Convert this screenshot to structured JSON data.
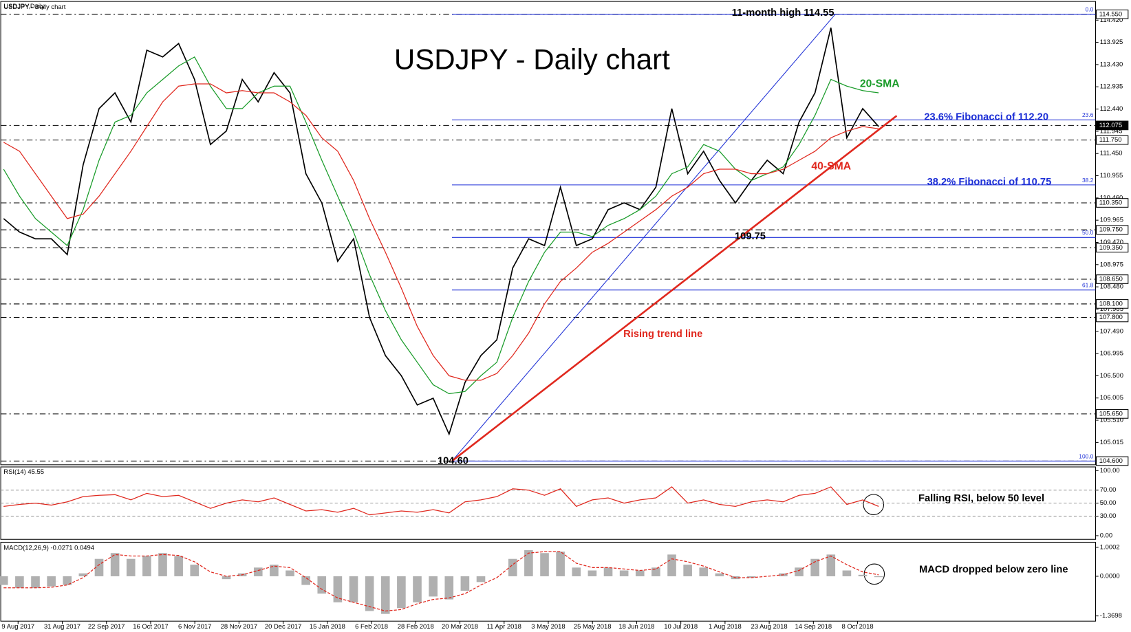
{
  "header": "USDJPY,Daily",
  "x_axis_labels": [
    "9 Aug 2017",
    "31 Aug 2017",
    "22 Sep 2017",
    "16 Oct 2017",
    "6 Nov 2017",
    "28 Nov 2017",
    "20 Dec 2017",
    "15 Jan 2018",
    "6 Feb 2018",
    "28 Feb 2018",
    "20 Mar 2018",
    "11 Apr 2018",
    "3 May 2018",
    "25 May 2018",
    "18 Jun 2018",
    "10 Jul 2018",
    "1 Aug 2018",
    "23 Aug 2018",
    "14 Sep 2018",
    "8 Oct 2018"
  ],
  "chart_data": [
    {
      "type": "line",
      "title": "USDJPY - Daily chart",
      "series": [
        {
          "color": "#000000",
          "values": [
            110.0,
            109.7,
            109.55,
            109.55,
            109.2,
            111.2,
            112.45,
            112.8,
            112.15,
            113.75,
            113.6,
            113.9,
            113.1,
            111.65,
            111.95,
            113.1,
            112.6,
            113.25,
            112.8,
            111.0,
            110.35,
            109.05,
            109.55,
            107.8,
            106.95,
            106.5,
            105.85,
            106.0,
            105.2,
            106.35,
            106.95,
            107.3,
            108.9,
            109.55,
            109.4,
            110.7,
            109.4,
            109.55,
            110.2,
            110.35,
            110.2,
            110.7,
            112.45,
            111.0,
            111.5,
            110.85,
            110.35,
            110.85,
            111.3,
            111.0,
            112.15,
            112.8,
            114.25,
            111.8,
            112.45,
            112.05
          ]
        },
        {
          "name": "20-SMA",
          "color": "#1a9c2a",
          "values": [
            111.1,
            110.5,
            110.0,
            109.7,
            109.4,
            110.2,
            111.3,
            112.15,
            112.3,
            112.8,
            113.1,
            113.4,
            113.6,
            112.95,
            112.45,
            112.45,
            112.8,
            112.95,
            112.95,
            112.15,
            111.3,
            110.5,
            109.7,
            108.75,
            107.95,
            107.3,
            106.8,
            106.3,
            106.1,
            106.15,
            106.5,
            106.8,
            107.8,
            108.6,
            109.25,
            109.7,
            109.7,
            109.6,
            109.85,
            110.0,
            110.2,
            110.5,
            111.0,
            111.15,
            111.65,
            111.5,
            111.1,
            110.85,
            111.0,
            111.15,
            111.65,
            112.3,
            113.1,
            112.95,
            112.85,
            112.8
          ]
        },
        {
          "name": "40-SMA",
          "color": "#e0281e",
          "values": [
            111.7,
            111.5,
            111.0,
            110.5,
            110.0,
            110.1,
            110.5,
            111.0,
            111.5,
            112.05,
            112.6,
            112.95,
            113.0,
            113.0,
            112.8,
            112.85,
            112.8,
            112.8,
            112.6,
            112.3,
            111.8,
            111.5,
            110.85,
            110.0,
            109.25,
            108.45,
            107.6,
            106.95,
            106.5,
            106.4,
            106.4,
            106.55,
            106.95,
            107.45,
            108.1,
            108.6,
            108.9,
            109.25,
            109.45,
            109.7,
            109.95,
            110.2,
            110.5,
            110.7,
            111.0,
            111.1,
            111.1,
            111.0,
            111.0,
            111.1,
            111.3,
            111.5,
            111.8,
            111.95,
            112.05,
            112.0
          ]
        }
      ],
      "ylim": [
        104.55,
        114.82
      ],
      "yticks": [
        {
          "value": 114.42,
          "label": "114.420"
        },
        {
          "value": 113.925,
          "label": "113.925"
        },
        {
          "value": 113.43,
          "label": "113.430"
        },
        {
          "value": 112.935,
          "label": "112.935"
        },
        {
          "value": 112.44,
          "label": "112.440"
        },
        {
          "value": 111.945,
          "label": "111.945"
        },
        {
          "value": 111.45,
          "label": "111.450"
        },
        {
          "value": 110.955,
          "label": "110.955"
        },
        {
          "value": 110.46,
          "label": "110.460"
        },
        {
          "value": 109.965,
          "label": "109.965"
        },
        {
          "value": 109.47,
          "label": "109.470"
        },
        {
          "value": 108.975,
          "label": "108.975"
        },
        {
          "value": 108.48,
          "label": "108.480"
        },
        {
          "value": 107.985,
          "label": "107.985"
        },
        {
          "value": 107.49,
          "label": "107.490"
        },
        {
          "value": 106.995,
          "label": "106.995"
        },
        {
          "value": 106.5,
          "label": "106.500"
        },
        {
          "value": 106.005,
          "label": "106.005"
        },
        {
          "value": 105.51,
          "label": "105.510"
        },
        {
          "value": 105.015,
          "label": "105.015"
        }
      ],
      "levels": [
        {
          "value": 114.55,
          "label": "114.550"
        },
        {
          "value": 112.075,
          "label": "112.075"
        },
        {
          "value": 111.75,
          "label": "111.750"
        },
        {
          "value": 110.35,
          "label": "110.350"
        },
        {
          "value": 109.75,
          "label": "109.750"
        },
        {
          "value": 109.35,
          "label": "109.350"
        },
        {
          "value": 108.65,
          "label": "108.650"
        },
        {
          "value": 108.1,
          "label": "108.100"
        },
        {
          "value": 107.8,
          "label": "107.800"
        },
        {
          "value": 105.65,
          "label": "105.650"
        },
        {
          "value": 104.6,
          "label": "104.600"
        }
      ],
      "fib_levels": [
        {
          "label": "0.0",
          "price": 114.55
        },
        {
          "label": "23.6",
          "price": 112.2
        },
        {
          "label": "38.2",
          "price": 110.75
        },
        {
          "label": "50.0",
          "price": 109.58
        },
        {
          "label": "61.8",
          "price": 108.41
        },
        {
          "label": "100.0",
          "price": 104.6
        }
      ],
      "trend_line": {
        "label": "Rising trend line",
        "from": 104.6,
        "to": 112.29
      },
      "annotations": [
        "11-month high 114.55",
        "23.6% Fibonacci of 112.20",
        "38.2% Fibonacci of 110.75",
        "109.75",
        "104.60"
      ]
    },
    {
      "type": "line",
      "title": "RSI(14) 45.55",
      "annotation": "Falling RSI, below 50 level",
      "series": [
        {
          "color": "#e0281e",
          "values": [
            45,
            48,
            50,
            47,
            52,
            60,
            62,
            63,
            55,
            65,
            60,
            62,
            52,
            42,
            50,
            55,
            52,
            58,
            48,
            38,
            40,
            36,
            42,
            32,
            35,
            38,
            36,
            40,
            35,
            52,
            55,
            60,
            72,
            70,
            62,
            72,
            45,
            55,
            58,
            50,
            55,
            58,
            75,
            50,
            55,
            48,
            45,
            52,
            55,
            52,
            62,
            65,
            75,
            48,
            55,
            45
          ]
        }
      ],
      "ylim": [
        -5.6,
        105.6
      ],
      "yticks": [
        {
          "value": 100,
          "label": "100.00"
        },
        {
          "value": 70,
          "label": "70.00"
        },
        {
          "value": 50,
          "label": "50.00"
        },
        {
          "value": 30,
          "label": "30.00"
        },
        {
          "value": 0,
          "label": "0.00"
        }
      ]
    },
    {
      "type": "bar",
      "title": "MACD(12,26,9) -0.0271 0.0494",
      "annotation": "MACD dropped below zero line",
      "series": [
        {
          "color": "#b0b0b0",
          "values": [
            -0.3,
            -0.4,
            -0.4,
            -0.35,
            -0.3,
            0.1,
            0.6,
            0.8,
            0.6,
            0.7,
            0.8,
            0.7,
            0.4,
            0.0,
            -0.1,
            0.1,
            0.3,
            0.4,
            0.2,
            -0.3,
            -0.6,
            -0.9,
            -0.9,
            -1.2,
            -1.3,
            -1.1,
            -0.9,
            -0.7,
            -0.8,
            -0.5,
            -0.2,
            0.0,
            0.6,
            0.9,
            0.8,
            0.85,
            0.3,
            0.2,
            0.3,
            0.2,
            0.2,
            0.3,
            0.75,
            0.4,
            0.3,
            0.1,
            -0.1,
            -0.05,
            0.0,
            0.1,
            0.3,
            0.6,
            0.75,
            0.2,
            0.05,
            -0.03
          ]
        },
        {
          "color": "#e0281e",
          "values": [
            -0.4,
            -0.4,
            -0.4,
            -0.38,
            -0.3,
            -0.05,
            0.4,
            0.75,
            0.7,
            0.7,
            0.75,
            0.72,
            0.5,
            0.15,
            0.0,
            0.05,
            0.2,
            0.35,
            0.3,
            -0.05,
            -0.45,
            -0.75,
            -0.9,
            -1.05,
            -1.2,
            -1.15,
            -0.95,
            -0.8,
            -0.75,
            -0.6,
            -0.3,
            -0.05,
            0.4,
            0.8,
            0.85,
            0.85,
            0.45,
            0.3,
            0.3,
            0.25,
            0.2,
            0.25,
            0.6,
            0.5,
            0.35,
            0.15,
            -0.05,
            -0.05,
            0.0,
            0.05,
            0.2,
            0.5,
            0.7,
            0.4,
            0.15,
            0.05
          ]
        }
      ],
      "ylim": [
        -1.55,
        1.15
      ],
      "yticks": [
        1.0002,
        {
          "value": 0,
          "label": "0.0000"
        },
        -1.3698
      ]
    }
  ]
}
